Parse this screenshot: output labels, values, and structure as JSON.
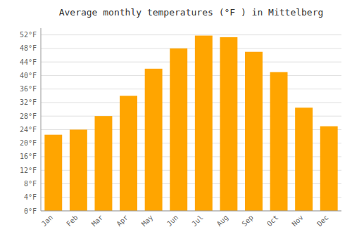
{
  "chart_data": {
    "type": "bar",
    "title": "Average monthly temperatures (°F ) in Mittelberg",
    "categories": [
      "Jan",
      "Feb",
      "Mar",
      "Apr",
      "May",
      "Jun",
      "Jul",
      "Aug",
      "Sep",
      "Oct",
      "Nov",
      "Dec"
    ],
    "values": [
      22.5,
      24.0,
      28.0,
      34.0,
      42.0,
      48.0,
      51.8,
      51.3,
      47.0,
      41.0,
      30.5,
      25.0
    ],
    "color": "#FFA500",
    "ylim": [
      0,
      54
    ],
    "yticks": [
      {
        "value": 0,
        "label": "0°F"
      },
      {
        "value": 4,
        "label": "4°F"
      },
      {
        "value": 8,
        "label": "8°F"
      },
      {
        "value": 12,
        "label": "12°F"
      },
      {
        "value": 16,
        "label": "16°F"
      },
      {
        "value": 20,
        "label": "20°F"
      },
      {
        "value": 24,
        "label": "24°F"
      },
      {
        "value": 28,
        "label": "28°F"
      },
      {
        "value": 32,
        "label": "32°F"
      },
      {
        "value": 36,
        "label": "36°F"
      },
      {
        "value": 40,
        "label": "40°F"
      },
      {
        "value": 44,
        "label": "44°F"
      },
      {
        "value": 48,
        "label": "48°F"
      },
      {
        "value": 52,
        "label": "52°F"
      }
    ],
    "grid": true
  }
}
